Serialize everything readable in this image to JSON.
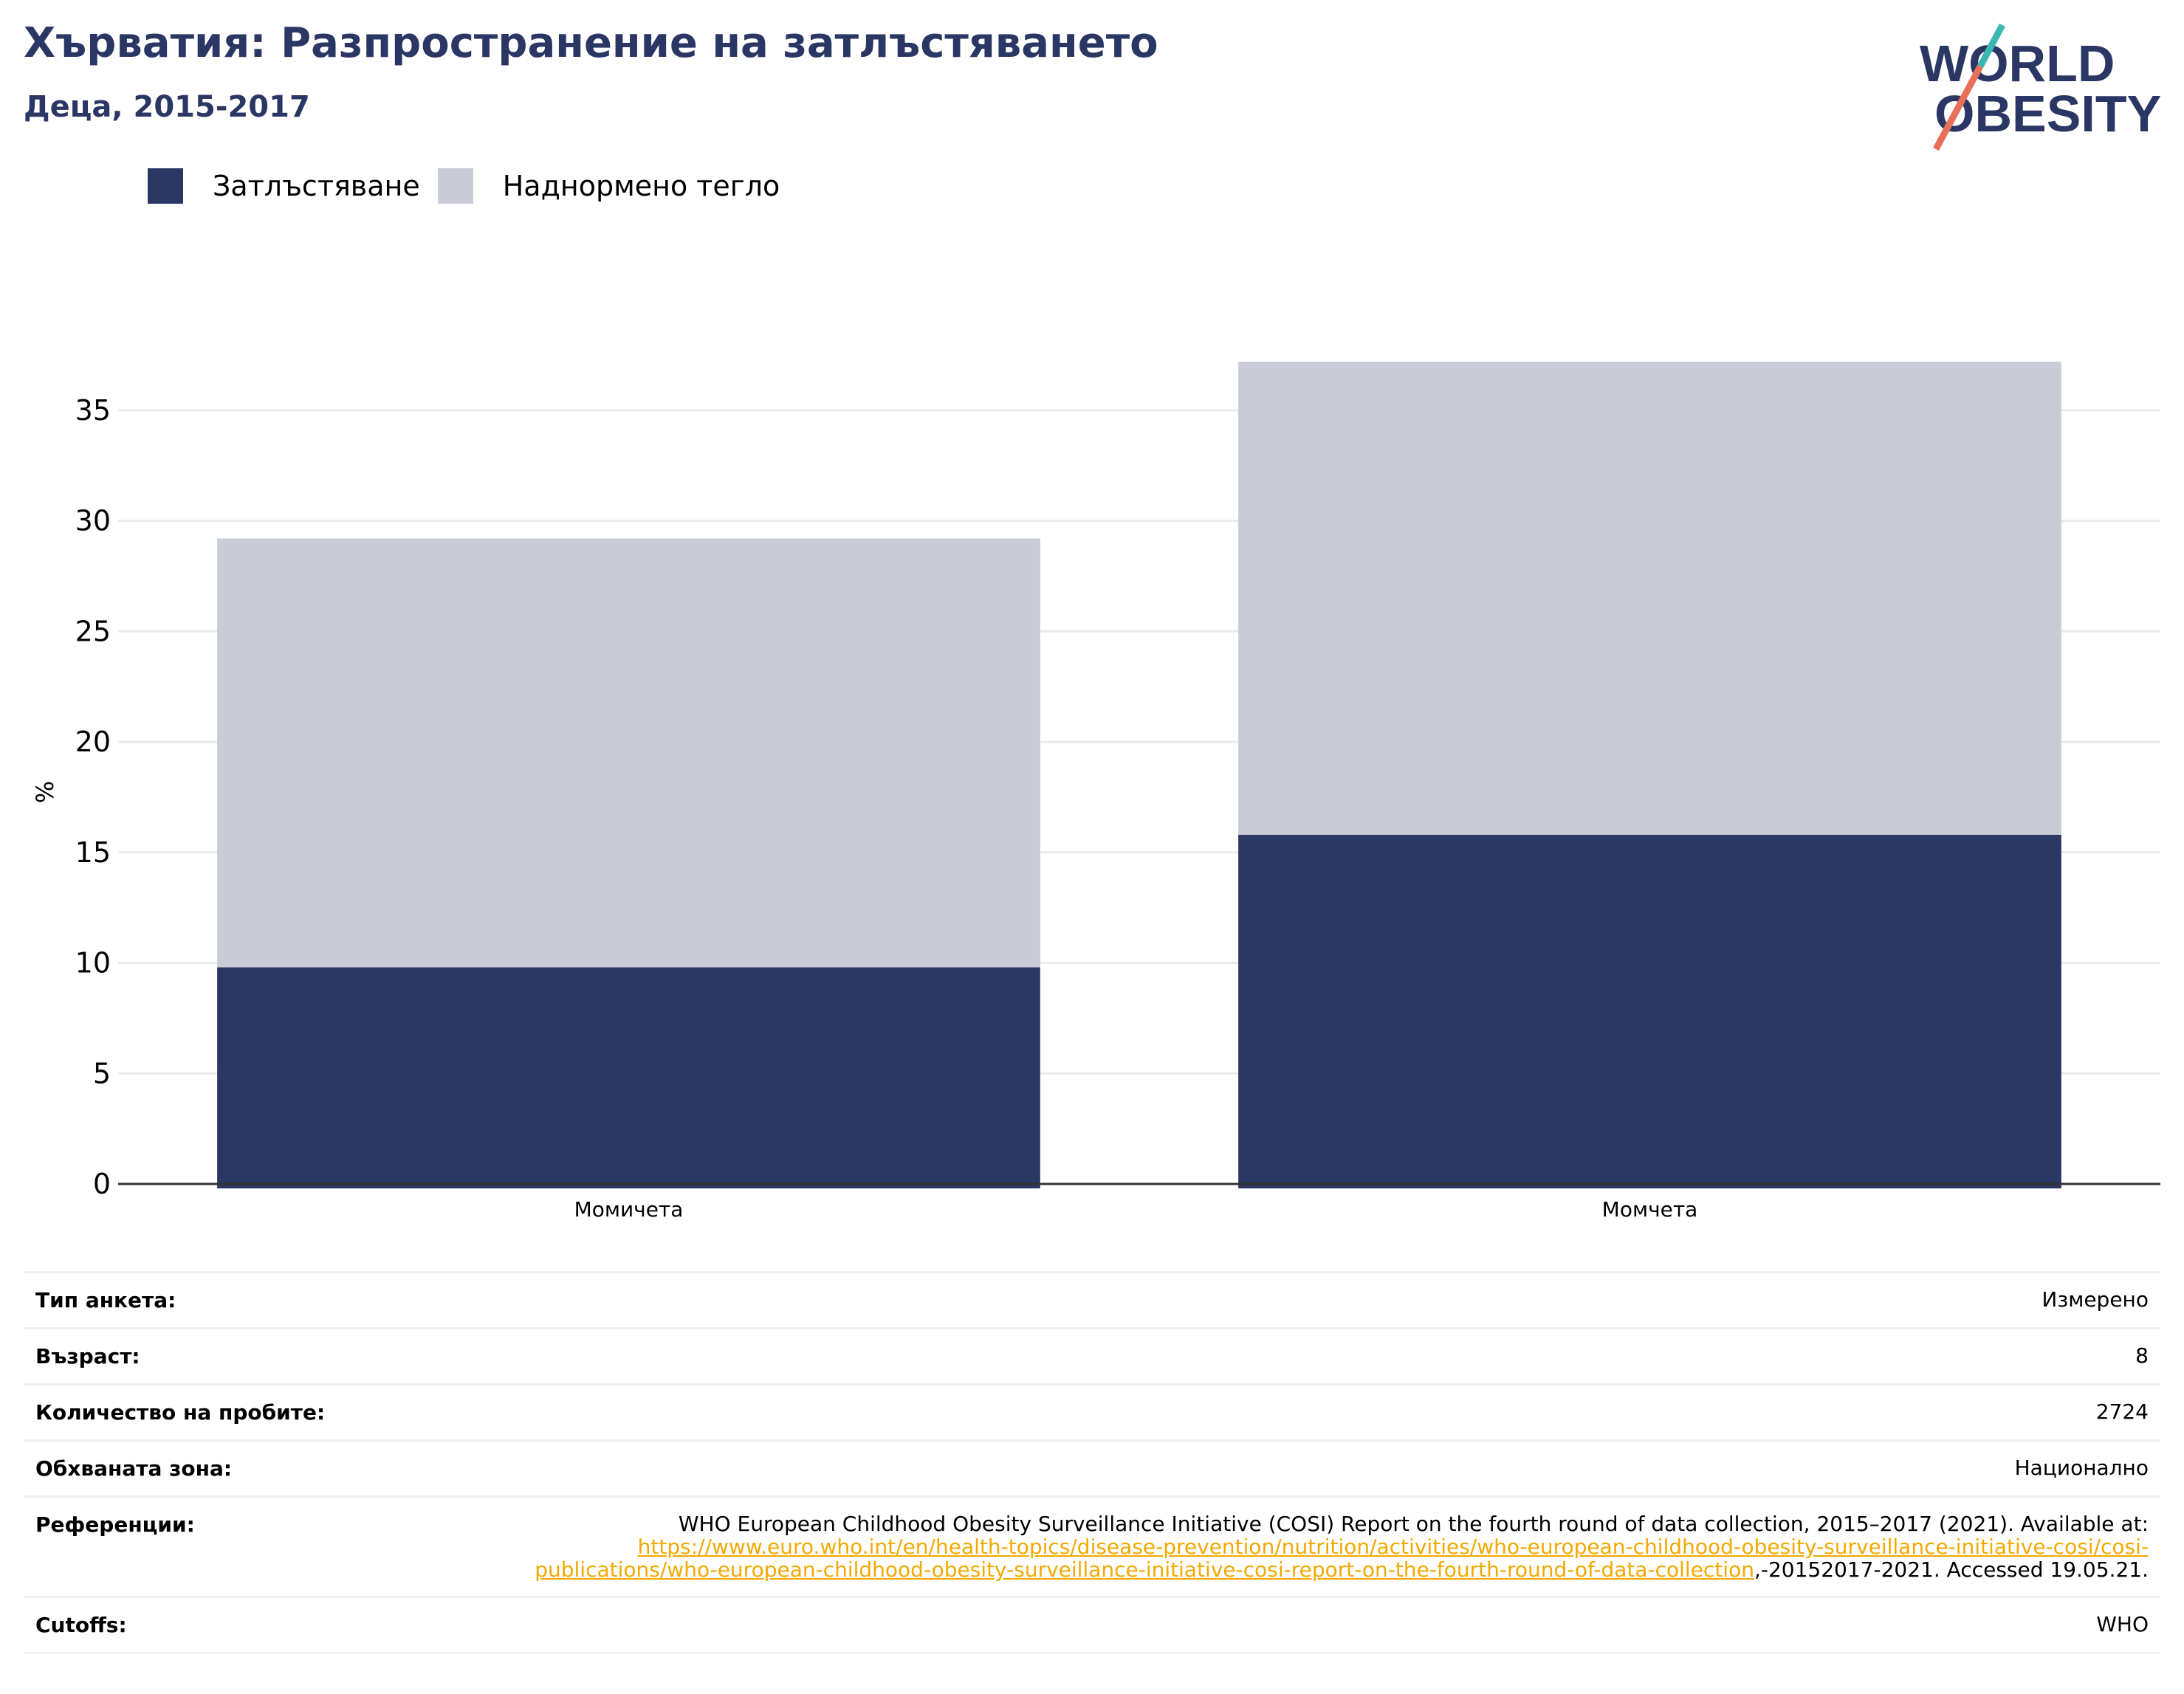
{
  "header": {
    "title": "Хърватия: Разпространение на затлъстяването",
    "subtitle": "Деца, 2015-2017"
  },
  "logo": {
    "line1": "WORLD",
    "line2": "OBESITY",
    "colors": {
      "text": "#2a3764",
      "slash_top": "#3bb8b3",
      "slash_bottom": "#e8705a"
    }
  },
  "legend": [
    {
      "label": "Затлъстяване",
      "color": "#2a3764"
    },
    {
      "label": "Наднормено тегло",
      "color": "#c9cbd7"
    }
  ],
  "chart_data": {
    "type": "bar",
    "stacked": true,
    "categories": [
      "Момичета",
      "Момчета"
    ],
    "series": [
      {
        "name": "Затлъстяване",
        "values": [
          9.8,
          15.8
        ],
        "color": "#2a3764"
      },
      {
        "name": "Наднормено тегло",
        "values": [
          19.4,
          21.4
        ],
        "color": "#c9cbd7"
      }
    ],
    "ylabel": "%",
    "yticks": [
      0,
      5,
      10,
      15,
      20,
      25,
      30,
      35
    ],
    "ylim": [
      0,
      37.2
    ],
    "grid": true,
    "legend_position": "top-left"
  },
  "info": {
    "rows": [
      {
        "key": "Тип анкета:",
        "value": "Измерено"
      },
      {
        "key": "Възраст:",
        "value": "8"
      },
      {
        "key": "Количество на пробите:",
        "value": "2724"
      },
      {
        "key": "Обхваната зона:",
        "value": "Национално"
      }
    ],
    "references": {
      "key": "Референции:",
      "text": "WHO European Childhood Obesity Surveillance Initiative (COSI) Report on the fourth round of data collection, 2015–2017 (2021). Available at:",
      "link": "https://www.euro.who.int/en/health-topics/disease-prevention/nutrition/activities/who-european-childhood-obesity-surveillance-initiative-cosi/cosi-publications/who-european-childhood-obesity-surveillance-initiative-cosi-report-on-the-fourth-round-of-data-collection",
      "tail": ",-20152017-2021. Accessed 19.05.21."
    },
    "cutoffs": {
      "key": "Cutoffs:",
      "value": "WHO"
    }
  }
}
